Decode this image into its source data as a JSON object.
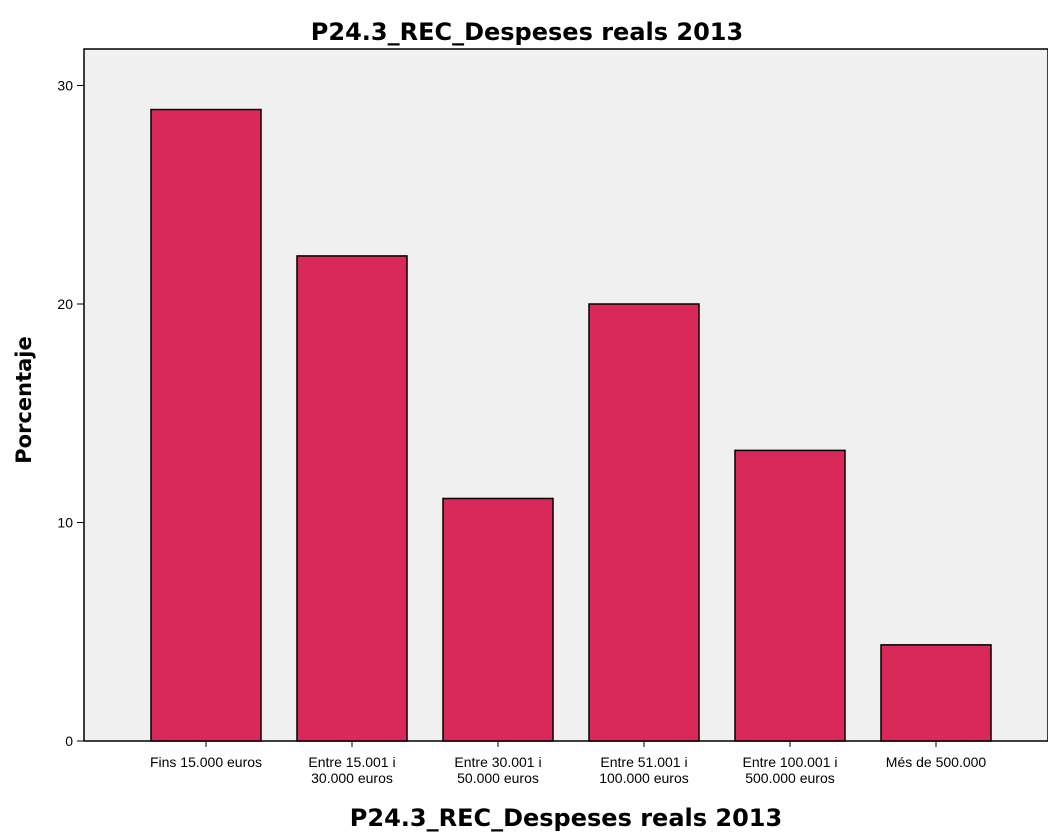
{
  "chart_data": {
    "type": "bar",
    "title": "P24.3_REC_Despeses reals 2013",
    "xlabel": "P24.3_REC_Despeses reals 2013",
    "ylabel": "Porcentaje",
    "ylim": [
      0,
      30
    ],
    "yticks": [
      "0",
      "10",
      "20",
      "30"
    ],
    "grid": false,
    "categories": [
      [
        "Fins 15.000 euros"
      ],
      [
        "Entre 15.001 i",
        "30.000 euros"
      ],
      [
        "Entre 30.001 i",
        "50.000 euros"
      ],
      [
        "Entre 51.001 i",
        "100.000 euros"
      ],
      [
        "Entre 100.001 i",
        "500.000 euros"
      ],
      [
        "Més de 500.000"
      ]
    ],
    "values": [
      28.9,
      22.2,
      11.1,
      20.0,
      13.3,
      4.4
    ],
    "colors": {
      "bar_fill": "#D9285A",
      "bar_stroke": "#000000",
      "plot_background": "#F0F0F0",
      "axis": "#000000"
    }
  }
}
